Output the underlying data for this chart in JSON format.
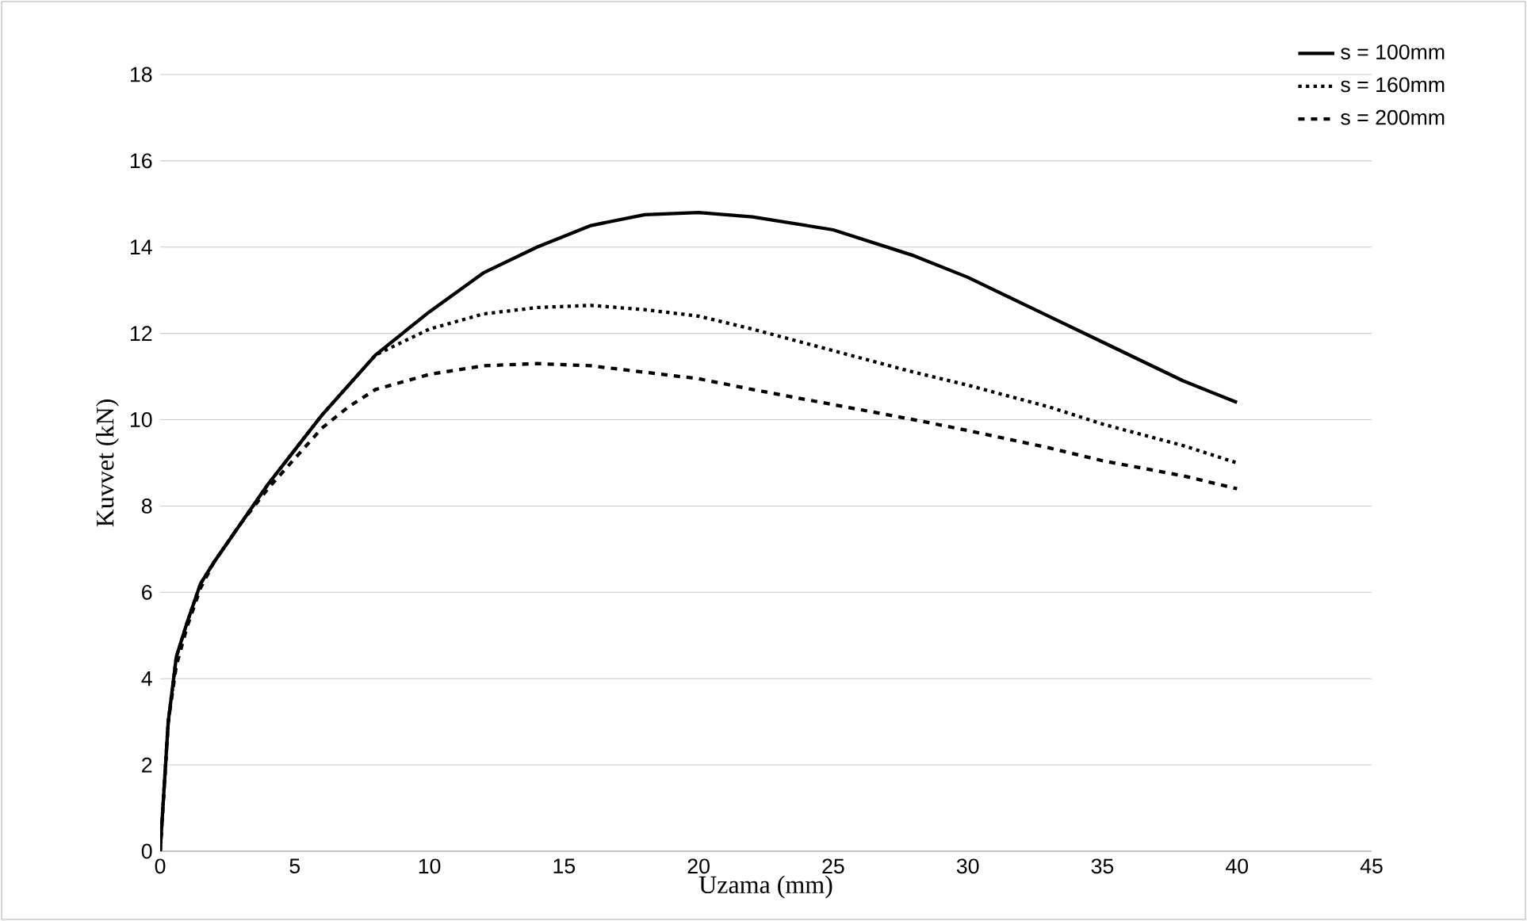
{
  "chart_data": {
    "type": "line",
    "xlabel": "Uzama (mm)",
    "ylabel": "Kuvvet (kN)",
    "xlim": [
      0,
      45
    ],
    "ylim": [
      0,
      18
    ],
    "xticks": [
      0,
      5,
      10,
      15,
      20,
      25,
      30,
      35,
      40,
      45
    ],
    "yticks": [
      0,
      2,
      4,
      6,
      8,
      10,
      12,
      14,
      16,
      18
    ],
    "grid": "y",
    "legend": "top right",
    "marker": "none",
    "series": [
      {
        "name": "s = 100mm",
        "color": "#000000",
        "line_style": "solid",
        "x": [
          0,
          0.3,
          0.6,
          1,
          1.5,
          2,
          3,
          4,
          5,
          6,
          7,
          8,
          10,
          12,
          14,
          16,
          18,
          20,
          22,
          25,
          28,
          30,
          33,
          35,
          38,
          40
        ],
        "values": [
          0,
          3,
          4.5,
          5.3,
          6.2,
          6.7,
          7.6,
          8.5,
          9.3,
          10.1,
          10.8,
          11.5,
          12.5,
          13.4,
          14.0,
          14.5,
          14.75,
          14.8,
          14.7,
          14.4,
          13.8,
          13.3,
          12.4,
          11.8,
          10.9,
          10.4
        ]
      },
      {
        "name": "s = 160mm",
        "color": "#000000",
        "line_style": "dotted",
        "x": [
          0,
          0.3,
          0.6,
          1,
          1.5,
          2,
          3,
          4,
          5,
          6,
          7,
          8,
          10,
          12,
          14,
          16,
          18,
          20,
          22,
          25,
          28,
          30,
          33,
          35,
          38,
          40
        ],
        "values": [
          0,
          3,
          4.5,
          5.3,
          6.2,
          6.7,
          7.6,
          8.5,
          9.3,
          10.1,
          10.8,
          11.5,
          12.1,
          12.45,
          12.6,
          12.65,
          12.55,
          12.4,
          12.1,
          11.6,
          11.1,
          10.8,
          10.3,
          9.9,
          9.4,
          9.0
        ]
      },
      {
        "name": "s = 200mm",
        "color": "#000000",
        "line_style": "dashed",
        "x": [
          0,
          0.3,
          0.6,
          1,
          1.5,
          2,
          3,
          4,
          5,
          6,
          7,
          8,
          10,
          12,
          14,
          16,
          18,
          20,
          22,
          25,
          28,
          30,
          33,
          35,
          38,
          40
        ],
        "values": [
          0,
          3,
          4.3,
          5.2,
          6.1,
          6.7,
          7.6,
          8.4,
          9.1,
          9.8,
          10.3,
          10.7,
          11.05,
          11.25,
          11.3,
          11.25,
          11.1,
          10.95,
          10.7,
          10.35,
          10.0,
          9.75,
          9.35,
          9.05,
          8.7,
          8.4
        ]
      }
    ]
  }
}
